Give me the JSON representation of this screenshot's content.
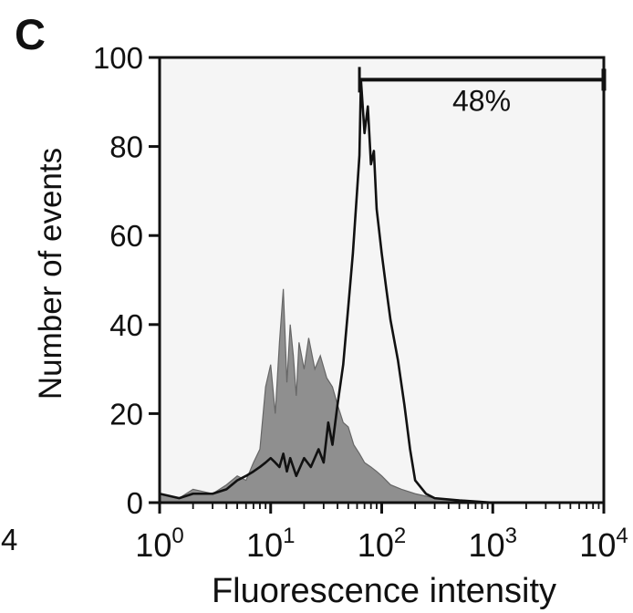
{
  "panel_label": "C",
  "edge_label": "4",
  "colors": {
    "filled_histogram": "#8f8f8f",
    "outline_histogram": "#111111",
    "axes": "#111111",
    "gate": "#111111",
    "plot_background": "#f5f5f5"
  },
  "chart_data": {
    "type": "area",
    "xlabel": "Fluorescence intensity",
    "ylabel": "Number of events",
    "x_scale": "log",
    "xlim": [
      1,
      10000
    ],
    "ylim": [
      0,
      100
    ],
    "x_ticks": [
      {
        "value": 1,
        "base": "10",
        "exp": "0"
      },
      {
        "value": 10,
        "base": "10",
        "exp": "1"
      },
      {
        "value": 100,
        "base": "10",
        "exp": "2"
      },
      {
        "value": 1000,
        "base": "10",
        "exp": "3"
      },
      {
        "value": 10000,
        "base": "10",
        "exp": "4"
      }
    ],
    "y_ticks": [
      0,
      20,
      40,
      60,
      80,
      100
    ],
    "gate": {
      "label": "48%",
      "x_start": 63,
      "x_end": 10000,
      "y": 95
    },
    "series": [
      {
        "style": "filled-gray",
        "x": [
          1,
          1.5,
          2,
          3,
          4,
          5,
          6,
          7,
          8,
          9,
          10,
          11,
          12,
          13,
          14,
          15,
          16,
          17,
          18,
          20,
          22,
          25,
          28,
          32,
          36,
          40,
          45,
          50,
          56,
          63,
          70,
          80,
          90,
          100,
          120,
          150,
          200,
          300,
          500,
          1000,
          10000
        ],
        "y": [
          2,
          1,
          3,
          2,
          4,
          6,
          5,
          9,
          12,
          26,
          31,
          20,
          36,
          48,
          27,
          40,
          33,
          24,
          36,
          30,
          37,
          30,
          33,
          28,
          26,
          22,
          18,
          17,
          13,
          11,
          9,
          8,
          7,
          6,
          4,
          3,
          2,
          1,
          0.5,
          0,
          0
        ]
      },
      {
        "style": "outline-black",
        "x": [
          1,
          1.5,
          2,
          3,
          4,
          5,
          6,
          7,
          8,
          9,
          10,
          11,
          12,
          13,
          14,
          15,
          17,
          20,
          23,
          27,
          30,
          33,
          36,
          40,
          45,
          50,
          55,
          60,
          63,
          65,
          70,
          75,
          80,
          85,
          90,
          100,
          110,
          120,
          140,
          160,
          180,
          200,
          250,
          300,
          500,
          1000,
          10000
        ],
        "y": [
          2,
          1,
          2,
          2,
          3,
          5,
          6,
          7,
          8,
          9,
          10,
          9,
          8,
          11,
          7,
          10,
          6,
          10,
          8,
          12,
          9,
          18,
          13,
          22,
          31,
          44,
          56,
          70,
          78,
          95,
          83,
          89,
          76,
          79,
          66,
          56,
          48,
          41,
          32,
          22,
          12,
          5,
          2,
          1,
          0.5,
          0,
          0
        ]
      }
    ]
  }
}
